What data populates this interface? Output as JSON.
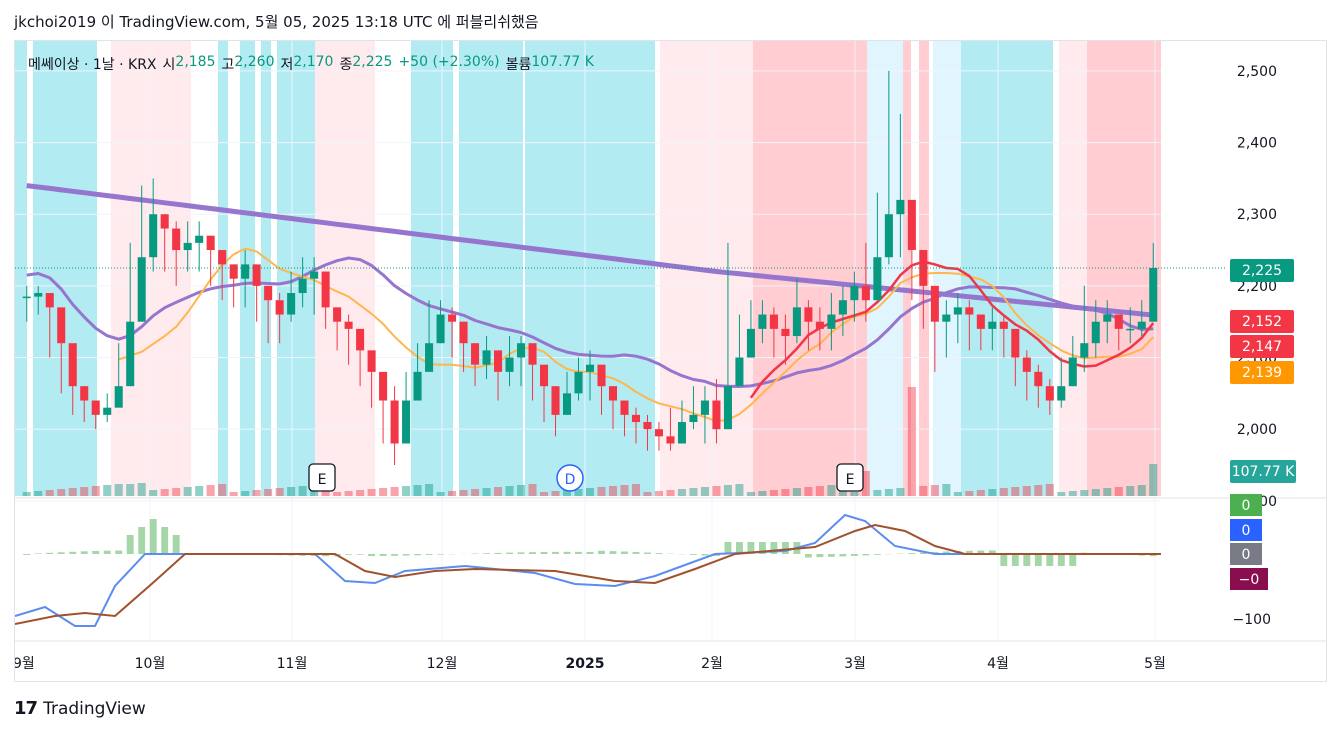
{
  "header": {
    "text": "jkchoi2019 이 TradingView.com, 5월 05, 2025 13:18 UTC 에 퍼블리쉬했음"
  },
  "legend": {
    "symbol": "메쎄이상 · 1날 · KRX",
    "open_label": "시",
    "open": "2,185",
    "high_label": "고",
    "high": "2,260",
    "low_label": "저",
    "low": "2,170",
    "close_label": "종",
    "close": "2,225",
    "change": "+50 (+2.30%)",
    "volume_label": "볼륨",
    "volume": "107.77 K"
  },
  "price_scale": {
    "ticks": [
      "2,500",
      "2,400",
      "2,300",
      "2,200",
      "2,100",
      "2,000",
      "1,900"
    ],
    "tick_values": [
      2500,
      2400,
      2300,
      2200,
      2100,
      2000,
      1900
    ],
    "badges": [
      {
        "label": "2,225",
        "value": 2225,
        "color": "#089981"
      },
      {
        "label": "2,152",
        "value": 2152,
        "color": "#f23645"
      },
      {
        "label": "2,147",
        "value": 2147,
        "color": "#f23645"
      },
      {
        "label": "2,139",
        "value": 2139,
        "color": "#ff9800"
      },
      {
        "label": "107.77 K",
        "value": 0,
        "color": "#26a69a"
      }
    ]
  },
  "osc_scale": {
    "ticks": [
      "-100"
    ],
    "badges": [
      {
        "label": "0",
        "color": "#4caf50"
      },
      {
        "label": "0",
        "color": "#2962ff"
      },
      {
        "label": "0",
        "color": "#787b86"
      },
      {
        "label": "−0",
        "color": "#880e4f"
      }
    ]
  },
  "time_axis": {
    "labels": [
      "9월",
      "10월",
      "11월",
      "12월",
      "2025",
      "2월",
      "3월",
      "4월",
      "5월"
    ]
  },
  "events": [
    {
      "label": "E",
      "type": "earnings"
    },
    {
      "label": "D",
      "type": "dividend"
    },
    {
      "label": "E",
      "type": "earnings"
    }
  ],
  "footer": {
    "logo": "17",
    "brand": "TradingView"
  },
  "chart_data": {
    "type": "candlestick",
    "ylim": [
      1890,
      2525
    ],
    "last_close": 2225,
    "ma_values": {
      "short": 2147,
      "mid": 2139,
      "long": 2152
    },
    "volume_last": "107.77 K",
    "closes": [
      2185,
      2190,
      2170,
      2120,
      2060,
      2040,
      2020,
      2030,
      2060,
      2150,
      2240,
      2300,
      2280,
      2250,
      2260,
      2270,
      2250,
      2230,
      2210,
      2230,
      2200,
      2180,
      2160,
      2190,
      2210,
      2220,
      2170,
      2150,
      2140,
      2110,
      2080,
      2040,
      1980,
      2040,
      2080,
      2120,
      2160,
      2150,
      2120,
      2090,
      2110,
      2080,
      2100,
      2120,
      2090,
      2060,
      2020,
      2050,
      2080,
      2090,
      2060,
      2040,
      2020,
      2010,
      2000,
      1990,
      1980,
      2010,
      2020,
      2040,
      2000,
      2060,
      2100,
      2140,
      2160,
      2140,
      2130,
      2170,
      2150,
      2140,
      2160,
      2180,
      2200,
      2180,
      2240,
      2300,
      2320,
      2250,
      2200,
      2150,
      2160,
      2170,
      2160,
      2140,
      2150,
      2140,
      2100,
      2080,
      2060,
      2040,
      2060,
      2100,
      2120,
      2150,
      2160,
      2140,
      2140,
      2150,
      2225
    ],
    "highs": [
      2200,
      2200,
      2190,
      2140,
      2080,
      2060,
      2040,
      2050,
      2120,
      2260,
      2340,
      2350,
      2300,
      2290,
      2290,
      2290,
      2270,
      2250,
      2230,
      2250,
      2220,
      2200,
      2190,
      2220,
      2240,
      2240,
      2200,
      2170,
      2160,
      2130,
      2100,
      2060,
      2060,
      2080,
      2120,
      2180,
      2180,
      2170,
      2140,
      2120,
      2130,
      2110,
      2130,
      2130,
      2110,
      2080,
      2060,
      2080,
      2100,
      2110,
      2080,
      2060,
      2040,
      2030,
      2020,
      2010,
      2030,
      2040,
      2060,
      2060,
      2070,
      2260,
      2160,
      2180,
      2180,
      2170,
      2160,
      2210,
      2180,
      2170,
      2190,
      2200,
      2220,
      2260,
      2330,
      2500,
      2440,
      2290,
      2240,
      2200,
      2180,
      2190,
      2180,
      2160,
      2170,
      2160,
      2130,
      2110,
      2090,
      2070,
      2100,
      2130,
      2200,
      2180,
      2180,
      2160,
      2170,
      2180,
      2260
    ],
    "lows": [
      2150,
      2160,
      2100,
      2050,
      2020,
      2010,
      2000,
      2010,
      2040,
      2100,
      2180,
      2220,
      2220,
      2200,
      2220,
      2220,
      2200,
      2180,
      2170,
      2170,
      2150,
      2120,
      2120,
      2150,
      2170,
      2160,
      2140,
      2110,
      2090,
      2060,
      2030,
      1980,
      1950,
      2000,
      2050,
      2100,
      2120,
      2100,
      2080,
      2060,
      2070,
      2040,
      2060,
      2060,
      2040,
      2010,
      1990,
      2020,
      2040,
      2040,
      2020,
      2000,
      1990,
      1980,
      1970,
      1970,
      1970,
      1990,
      2000,
      1980,
      1980,
      2040,
      2070,
      2100,
      2120,
      2100,
      2090,
      2120,
      2110,
      2110,
      2110,
      2130,
      2150,
      2150,
      2180,
      2230,
      2240,
      2180,
      2140,
      2080,
      2100,
      2120,
      2110,
      2110,
      2110,
      2100,
      2060,
      2040,
      2030,
      2020,
      2030,
      2060,
      2080,
      2100,
      2120,
      2110,
      2120,
      2130,
      2170
    ]
  }
}
